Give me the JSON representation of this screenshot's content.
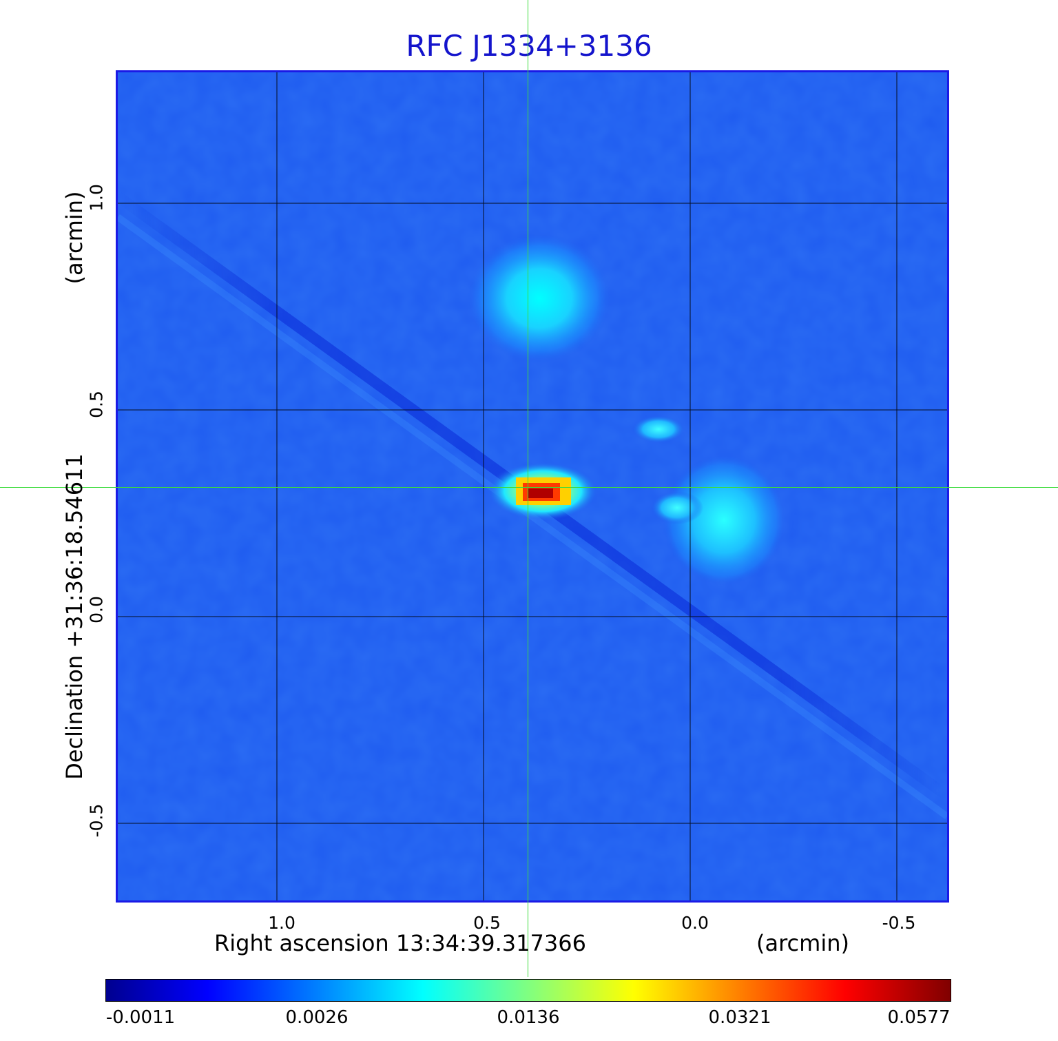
{
  "title": "RFC J1334+3136",
  "x_axis": {
    "label": "Right ascension  13:34:39.317366",
    "unit": "(arcmin)",
    "ticks": [
      "1.0",
      "0.5",
      "0.0",
      "-0.5"
    ]
  },
  "y_axis": {
    "label": "Declination  +31:36:18.54611",
    "unit": "(arcmin)",
    "ticks": [
      "1.0",
      "0.5",
      "0.0",
      "-0.5"
    ]
  },
  "colorbar": {
    "ticks": [
      "-0.0011",
      "0.0026",
      "0.0136",
      "0.0321",
      "0.0577"
    ],
    "colormap": "jet"
  },
  "colors": {
    "title": "#1414cc",
    "frame": "#1a1ae6",
    "crosshair": "#3ddc3d",
    "background_field": "#1f5cf0"
  }
}
